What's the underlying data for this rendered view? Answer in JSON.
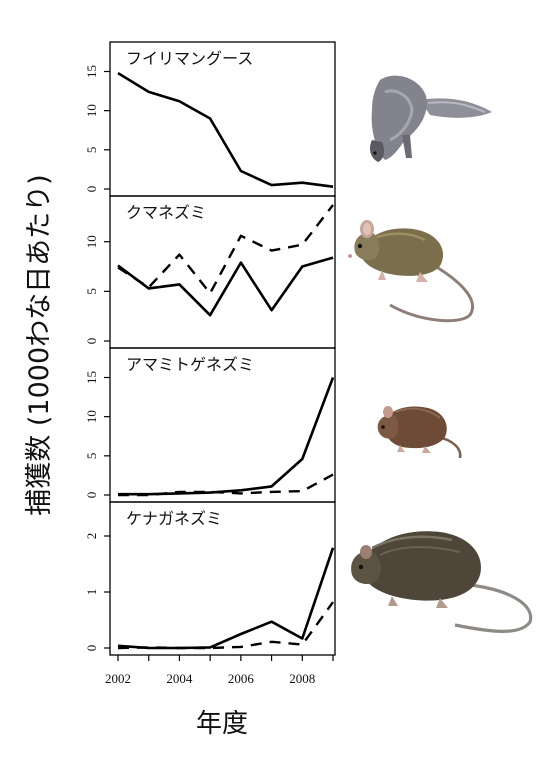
{
  "figure": {
    "ylabel": "捕獲数 (1000わな日あたり)",
    "xlabel": "年度"
  },
  "chart_data": {
    "type": "line",
    "x": [
      2002,
      2003,
      2004,
      2005,
      2006,
      2007,
      2008,
      2009
    ],
    "xticks": [
      2002,
      2004,
      2006,
      2008
    ],
    "xlim": [
      2002,
      2009
    ],
    "ylabel": "捕獲数 (1000わな日あたり)",
    "xlabel": "年度",
    "panels": [
      {
        "title": "フイリマングース",
        "animal": "mongoose-illustration",
        "ylim": [
          0,
          18
        ],
        "yticks": [
          0,
          5,
          10,
          15
        ],
        "series": [
          {
            "style": "solid",
            "values": [
              14.8,
              12.4,
              11.2,
              9.0,
              2.3,
              0.5,
              0.8,
              0.3
            ]
          }
        ]
      },
      {
        "title": "クマネズミ",
        "animal": "black-rat-illustration",
        "ylim": [
          0,
          14
        ],
        "yticks": [
          0,
          5,
          10
        ],
        "series": [
          {
            "style": "solid",
            "values": [
              7.6,
              5.3,
              5.7,
              2.6,
              7.9,
              3.1,
              7.5,
              8.4
            ]
          },
          {
            "style": "dashed",
            "values": [
              7.4,
              5.4,
              8.7,
              4.8,
              10.6,
              9.1,
              9.7,
              13.7
            ]
          }
        ]
      },
      {
        "title": "アマミトゲネズミ",
        "animal": "amami-spiny-rat-illustration",
        "ylim": [
          0,
          18
        ],
        "yticks": [
          0,
          5,
          10,
          15
        ],
        "series": [
          {
            "style": "solid",
            "values": [
              0.1,
              0.1,
              0.2,
              0.3,
              0.6,
              1.1,
              4.6,
              15.0
            ]
          },
          {
            "style": "dashed",
            "values": [
              0.0,
              0.0,
              0.4,
              0.4,
              0.2,
              0.4,
              0.5,
              2.6
            ]
          }
        ]
      },
      {
        "title": "ケナガネズミ",
        "animal": "ryukyu-long-haired-rat-illustration",
        "ylim": [
          0,
          2.5
        ],
        "yticks": [
          0,
          1,
          2
        ],
        "series": [
          {
            "style": "solid",
            "values": [
              0.04,
              0.0,
              0.0,
              0.01,
              0.25,
              0.47,
              0.17,
              1.79
            ]
          },
          {
            "style": "dashed",
            "values": [
              0.0,
              0.01,
              0.0,
              0.0,
              0.02,
              0.11,
              0.06,
              0.82
            ]
          }
        ]
      }
    ]
  }
}
